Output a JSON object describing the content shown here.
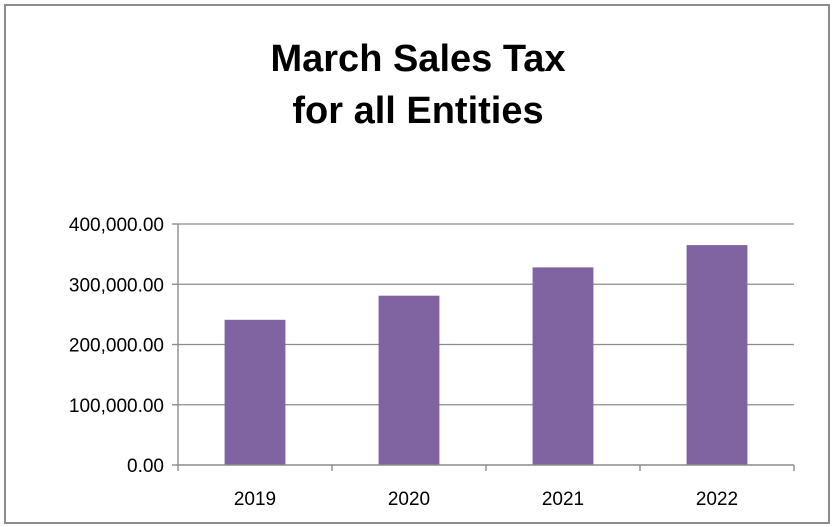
{
  "chart_data": {
    "type": "bar",
    "title_lines": [
      "March Sales Tax",
      "for all Entities"
    ],
    "categories": [
      "2019",
      "2020",
      "2021",
      "2022"
    ],
    "values": [
      241000,
      281000,
      328000,
      365000
    ],
    "ylim": [
      0,
      400000
    ],
    "y_ticks": [
      0,
      100000,
      200000,
      300000,
      400000
    ],
    "y_tick_labels": [
      "0.00",
      "100,000.00",
      "200,000.00",
      "300,000.00",
      "400,000.00"
    ],
    "xlabel": "",
    "ylabel": "",
    "grid": true,
    "legend": "none",
    "bar_color": "#8064a2",
    "grid_color": "#8c8c8c"
  }
}
